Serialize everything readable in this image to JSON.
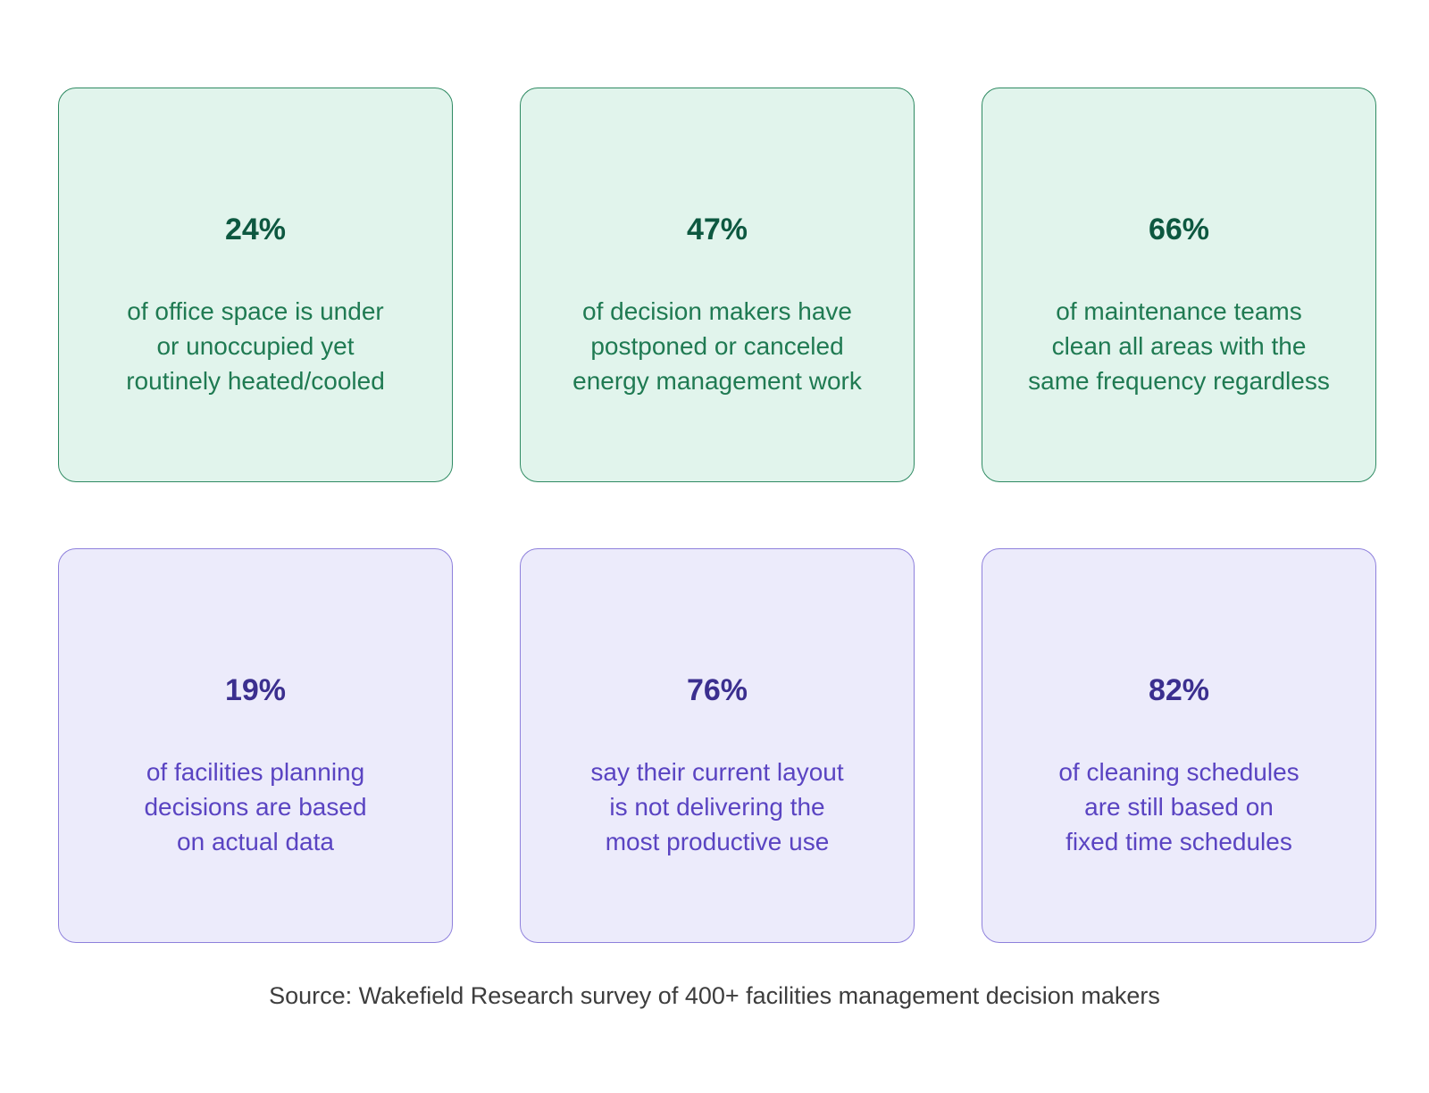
{
  "cards": [
    {
      "value": "24%",
      "lines": [
        "of office space is under",
        "or unoccupied yet",
        "routinely heated/cooled"
      ],
      "theme": "green"
    },
    {
      "value": "47%",
      "lines": [
        "of decision makers have",
        "postponed or canceled",
        "energy management work"
      ],
      "theme": "green"
    },
    {
      "value": "66%",
      "lines": [
        "of maintenance teams",
        "clean all areas with the",
        "same frequency regardless"
      ],
      "theme": "green"
    },
    {
      "value": "19%",
      "lines": [
        "of facilities planning",
        "decisions are based",
        "on actual data"
      ],
      "theme": "purple"
    },
    {
      "value": "76%",
      "lines": [
        "say their current layout",
        "is not delivering the",
        "most productive use"
      ],
      "theme": "purple"
    },
    {
      "value": "82%",
      "lines": [
        "of cleaning schedules",
        "are still based on",
        "fixed time schedules"
      ],
      "theme": "purple"
    }
  ],
  "source": "Source: Wakefield Research survey of 400+ facilities management decision makers",
  "colors": {
    "green_bg": "#e1f4ec",
    "green_border": "#2e8a62",
    "green_value": "#0d5840",
    "green_text": "#1f7a52",
    "purple_bg": "#ecebfb",
    "purple_border": "#8e80dc",
    "purple_value": "#3b2f8f",
    "purple_text": "#5a44c2"
  }
}
